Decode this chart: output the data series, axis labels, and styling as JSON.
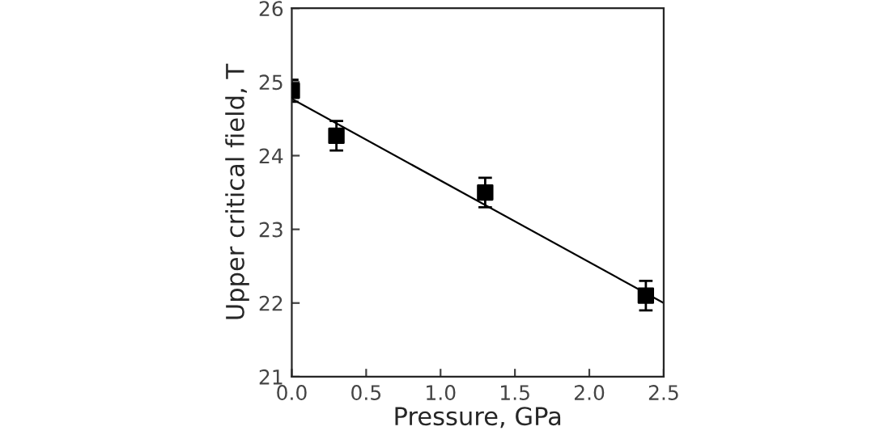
{
  "chart_data": {
    "type": "scatter",
    "xlabel": "Pressure, GPa",
    "ylabel": "Upper critical field, T",
    "xlim": [
      0.0,
      2.5
    ],
    "xticks": [
      {
        "value": 0.0,
        "label": "0.0"
      },
      {
        "value": 0.5,
        "label": "0.5"
      },
      {
        "value": 1.0,
        "label": "1.0"
      },
      {
        "value": 1.5,
        "label": "1.5"
      },
      {
        "value": 2.0,
        "label": "2.0"
      },
      {
        "value": 2.5,
        "label": "2.5"
      }
    ],
    "ylim": [
      21,
      26
    ],
    "yticks": [
      21,
      22,
      23,
      24,
      25,
      26
    ],
    "grid": false,
    "legend": false,
    "series": [
      {
        "color": "#000000",
        "marker": "square",
        "x": [
          0.0,
          0.3,
          1.3,
          2.38
        ],
        "values": [
          24.88,
          24.27,
          23.5,
          22.1
        ],
        "errors": [
          0.15,
          0.2,
          0.2,
          0.2
        ]
      },
      {
        "type": "line",
        "color": "#000000",
        "marker": "none",
        "line_style": "solid",
        "x": [
          0.0,
          2.5
        ],
        "values": [
          24.77,
          22.0
        ]
      }
    ]
  }
}
